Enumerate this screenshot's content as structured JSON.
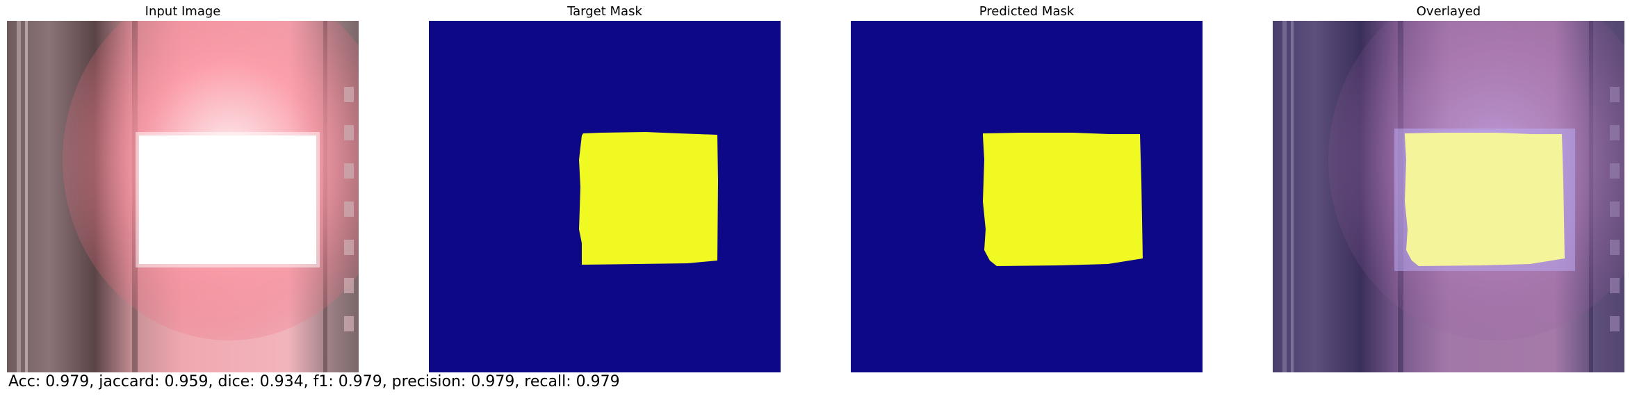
{
  "panels": [
    {
      "title": "Input Image"
    },
    {
      "title": "Target Mask"
    },
    {
      "title": "Predicted Mask"
    },
    {
      "title": "Overlayed"
    }
  ],
  "metrics_text": "Acc: 0.979, jaccard: 0.959, dice: 0.934, f1: 0.979, precision: 0.979, recall: 0.979",
  "colors": {
    "mask_background": "#0d0887",
    "mask_foreground": "#f0f921",
    "hot_region": "#ffffff",
    "glow": "#f07080"
  }
}
